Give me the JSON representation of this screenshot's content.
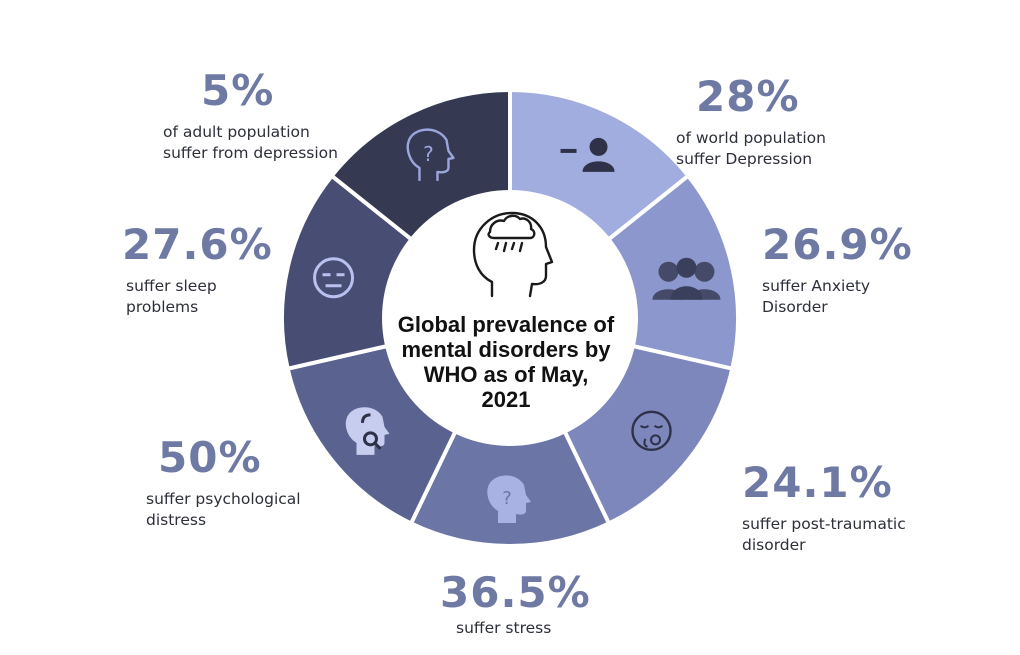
{
  "title_lines": [
    "Global prevalence of",
    "mental disorders by",
    "WHO as of May,",
    "2021"
  ],
  "colors": {
    "background": "#ffffff",
    "percent_text": "#6e7aa3",
    "label_text": "#2d2f3a",
    "segment_gap": "#ffffff"
  },
  "segments": [
    {
      "id": "world-depression",
      "percent": "28%",
      "value": 28,
      "lines": [
        "of world population",
        "suffer Depression"
      ],
      "color": "#a1acdf",
      "icon": "person-minus-icon"
    },
    {
      "id": "anxiety",
      "percent": "26.9%",
      "value": 26.9,
      "lines": [
        "suffer Anxiety",
        "Disorder"
      ],
      "color": "#8c97cd",
      "icon": "group-people-icon"
    },
    {
      "id": "ptsd",
      "percent": "24.1%",
      "value": 24.1,
      "lines": [
        "suffer post-traumatic",
        "disorder"
      ],
      "color": "#7d87bc",
      "icon": "worried-face-icon"
    },
    {
      "id": "stress",
      "percent": "36.5%",
      "value": 36.5,
      "lines": [
        "suffer stress"
      ],
      "color": "#6c76a6",
      "icon": "head-question-icon"
    },
    {
      "id": "psychological-distress",
      "percent": "50%",
      "value": 50,
      "lines": [
        "suffer psychological",
        "distress"
      ],
      "color": "#5a6290",
      "icon": "head-headset-icon"
    },
    {
      "id": "sleep",
      "percent": "27.6%",
      "value": 27.6,
      "lines": [
        "suffer sleep",
        "problems"
      ],
      "color": "#484e73",
      "icon": "sleepy-face-icon"
    },
    {
      "id": "adult-depression",
      "percent": "5%",
      "value": 5,
      "lines": [
        "of adult population",
        "suffer from depression"
      ],
      "color": "#353a52",
      "icon": "head-question-outline-icon"
    }
  ],
  "center_icon": "head-storm-cloud-icon"
}
